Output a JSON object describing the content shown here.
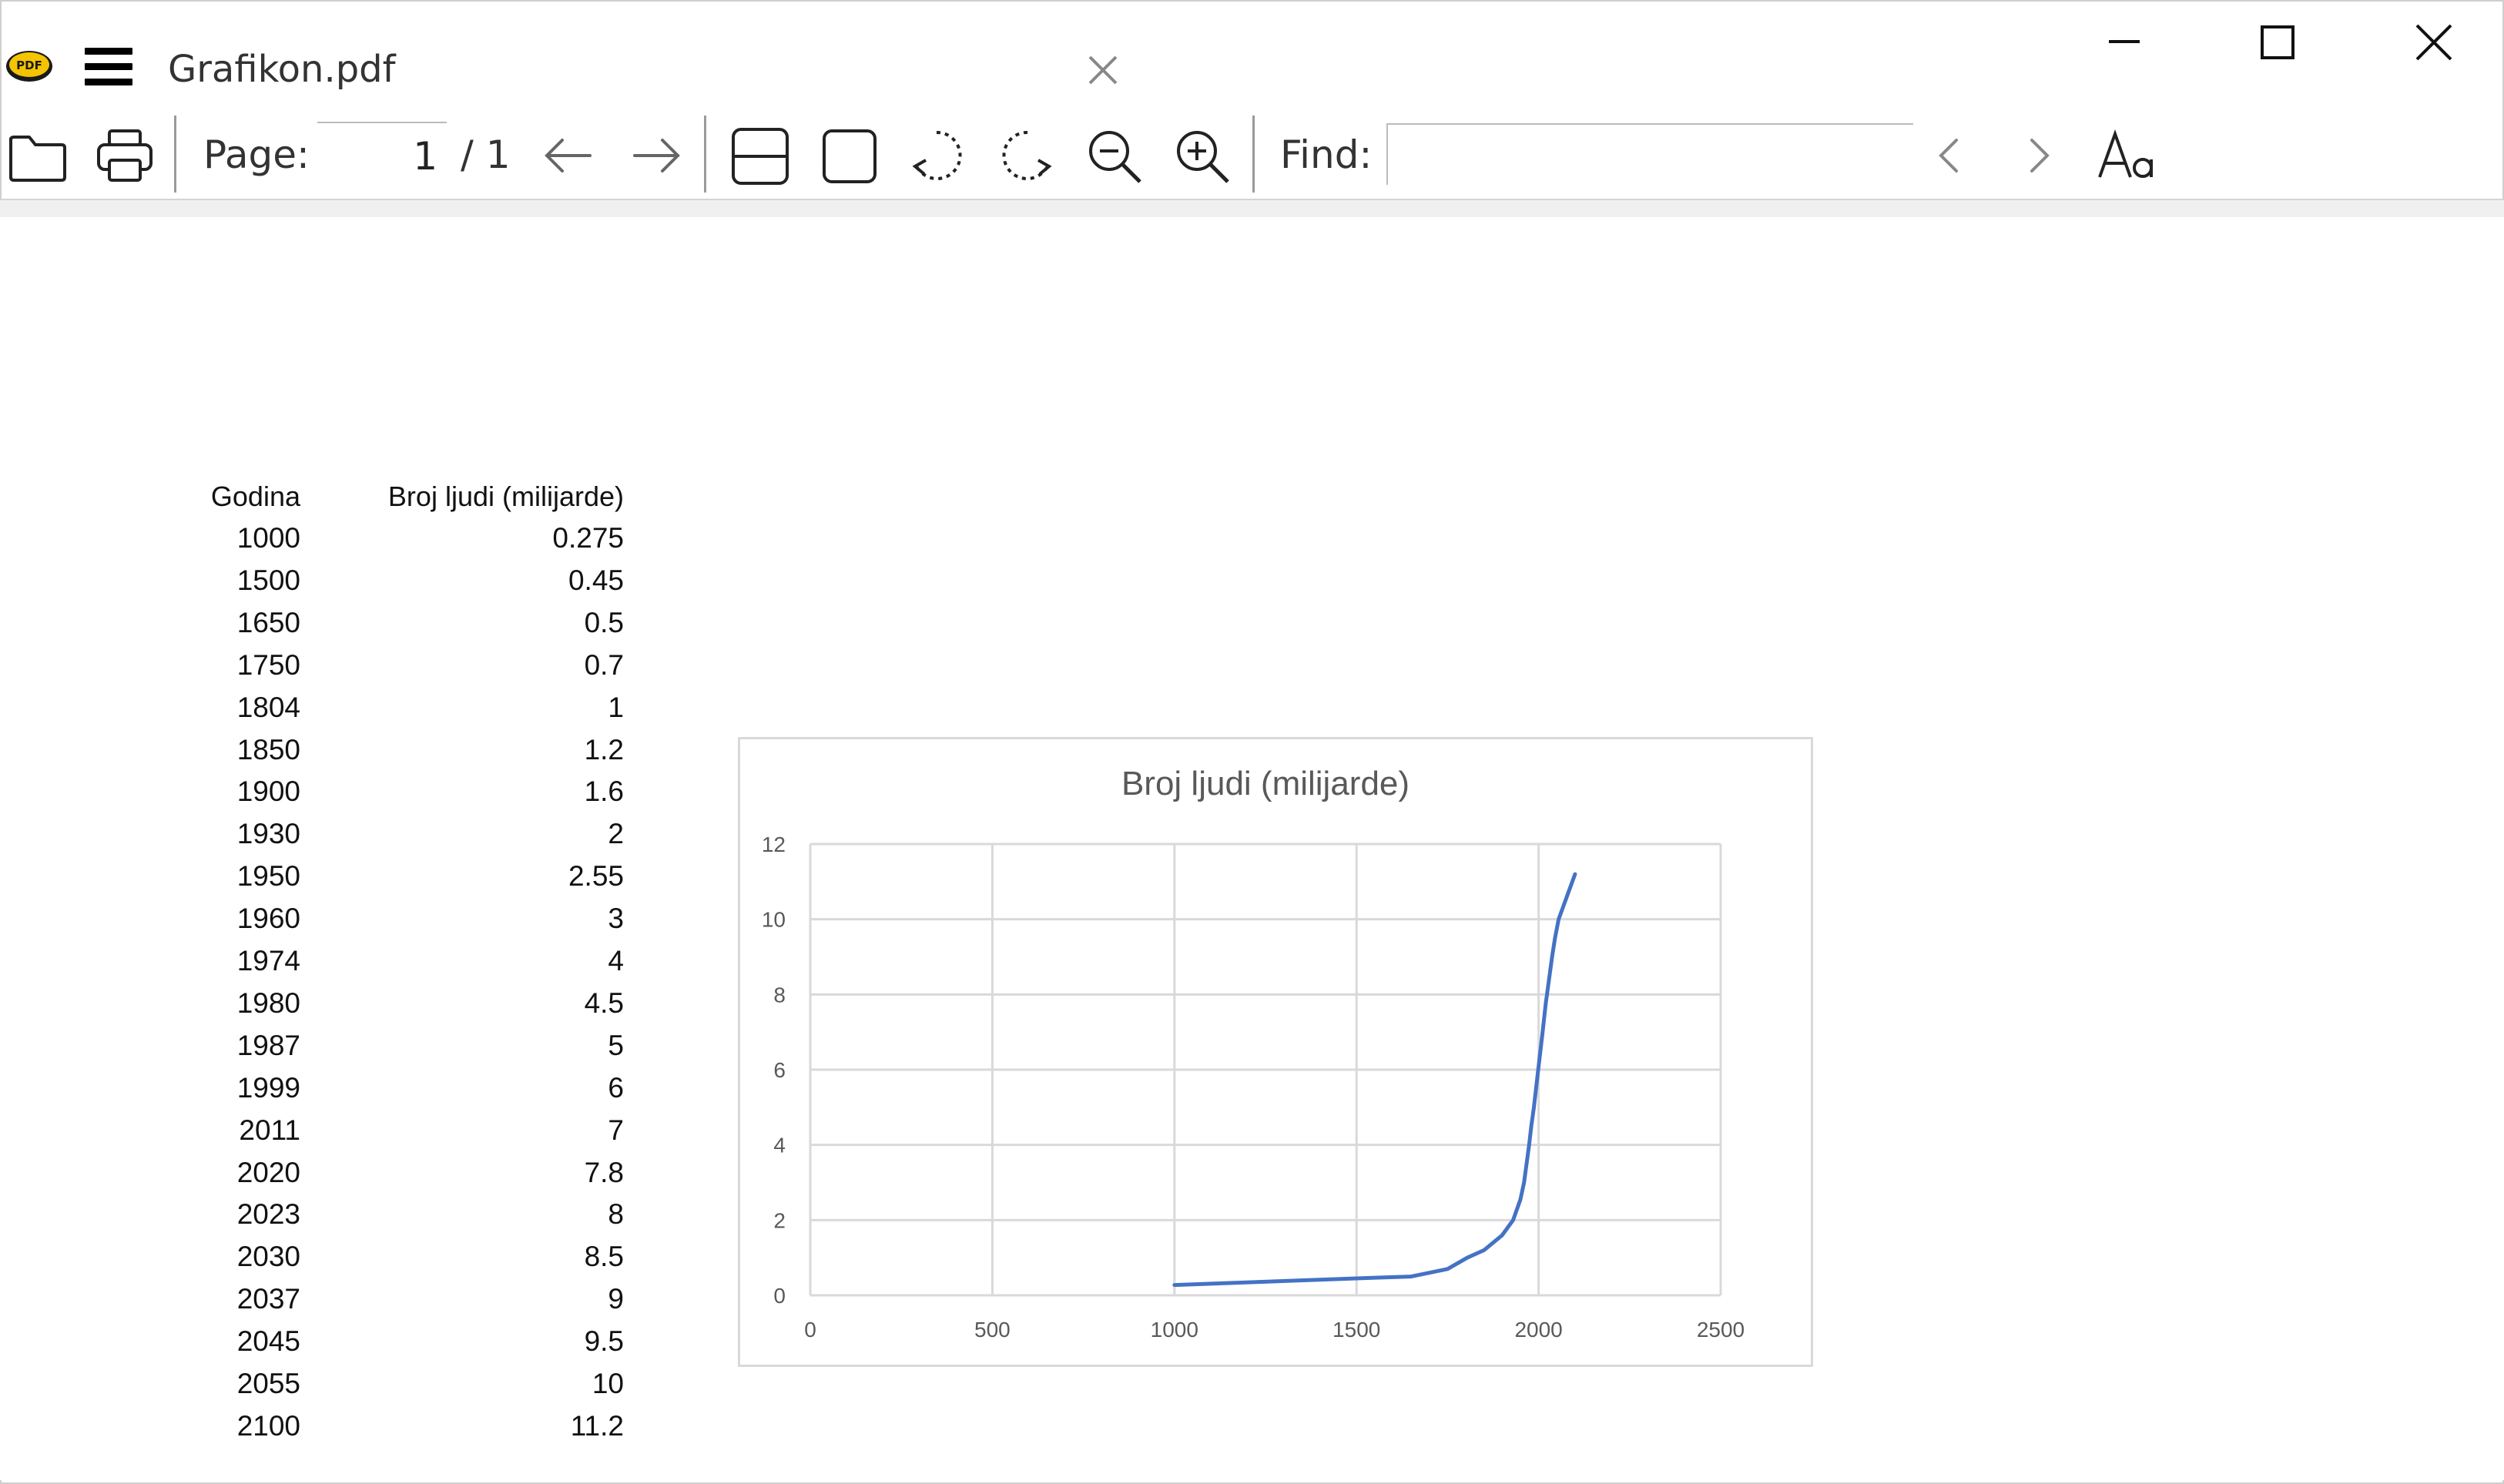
{
  "window": {
    "tab_title": "Grafikon.pdf",
    "app_logo_text": "PDF"
  },
  "toolbar": {
    "page_label": "Page:",
    "page_current": "1",
    "page_total": "/ 1",
    "find_label": "Find:",
    "find_value": ""
  },
  "table": {
    "headers": [
      "Godina",
      "Broj ljudi (milijarde)"
    ],
    "rows": [
      [
        "1000",
        "0.275"
      ],
      [
        "1500",
        "0.45"
      ],
      [
        "1650",
        "0.5"
      ],
      [
        "1750",
        "0.7"
      ],
      [
        "1804",
        "1"
      ],
      [
        "1850",
        "1.2"
      ],
      [
        "1900",
        "1.6"
      ],
      [
        "1930",
        "2"
      ],
      [
        "1950",
        "2.55"
      ],
      [
        "1960",
        "3"
      ],
      [
        "1974",
        "4"
      ],
      [
        "1980",
        "4.5"
      ],
      [
        "1987",
        "5"
      ],
      [
        "1999",
        "6"
      ],
      [
        "2011",
        "7"
      ],
      [
        "2020",
        "7.8"
      ],
      [
        "2023",
        "8"
      ],
      [
        "2030",
        "8.5"
      ],
      [
        "2037",
        "9"
      ],
      [
        "2045",
        "9.5"
      ],
      [
        "2055",
        "10"
      ],
      [
        "2100",
        "11.2"
      ]
    ]
  },
  "chart_data": {
    "type": "line",
    "title": "Broj ljudi (milijarde)",
    "xlabel": "",
    "ylabel": "",
    "xlim": [
      0,
      2500
    ],
    "ylim": [
      0,
      12
    ],
    "xticks": [
      0,
      500,
      1000,
      1500,
      2000,
      2500
    ],
    "yticks": [
      0,
      2,
      4,
      6,
      8,
      10,
      12
    ],
    "grid": true,
    "series": [
      {
        "color": "#4472c4",
        "x": [
          1000,
          1500,
          1650,
          1750,
          1804,
          1850,
          1900,
          1930,
          1950,
          1960,
          1974,
          1980,
          1987,
          1999,
          2011,
          2020,
          2023,
          2030,
          2037,
          2045,
          2055,
          2100
        ],
        "y": [
          0.275,
          0.45,
          0.5,
          0.7,
          1,
          1.2,
          1.6,
          2,
          2.55,
          3,
          4,
          4.5,
          5,
          6,
          7,
          7.8,
          8,
          8.5,
          9,
          9.5,
          10,
          11.2
        ]
      }
    ]
  }
}
